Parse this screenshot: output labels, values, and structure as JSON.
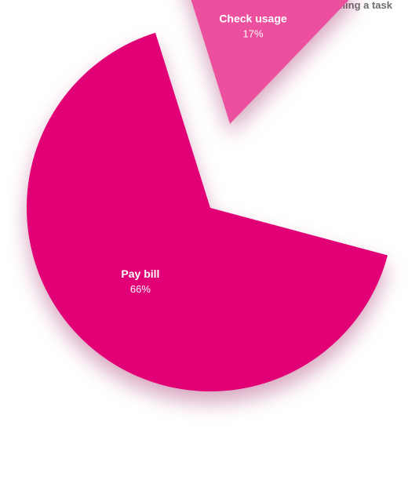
{
  "chart_data": {
    "type": "pie",
    "title": "Users performing a task",
    "slices": [
      {
        "label": "Pay bill",
        "value": 66,
        "value_label": "66%",
        "color": "#e10074",
        "exploded": false
      },
      {
        "label": "Check usage",
        "value": 17,
        "value_label": "17%",
        "color": "#eb4f9e",
        "exploded": true
      }
    ],
    "unit": "%"
  }
}
